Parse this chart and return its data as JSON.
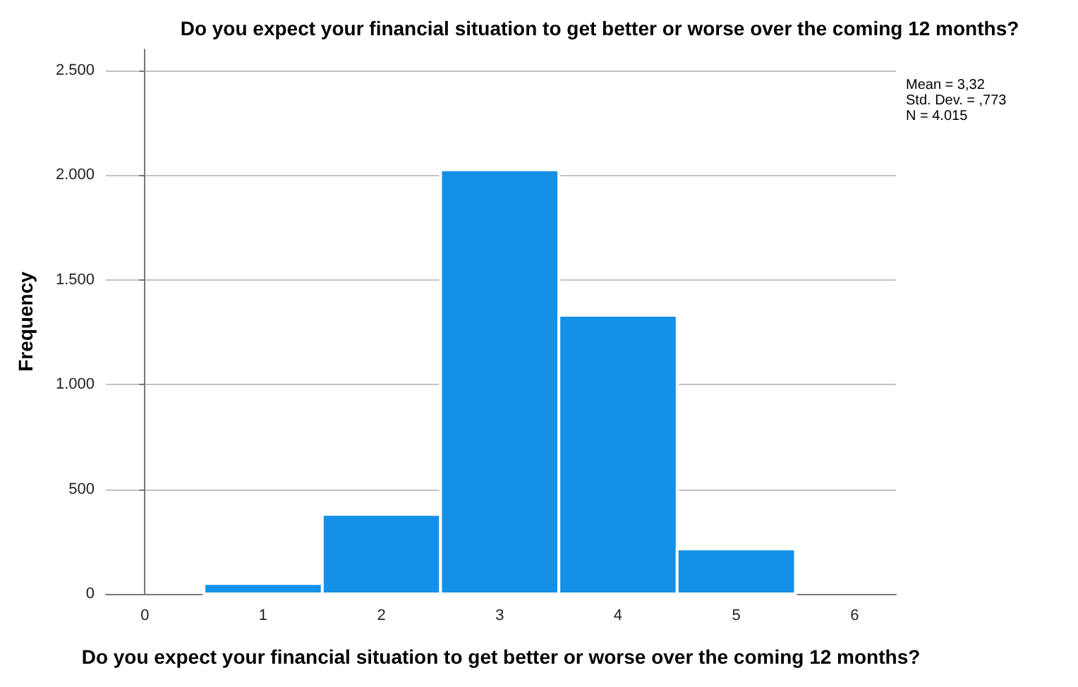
{
  "chart_data": {
    "type": "histogram",
    "title": "Do you expect your financial situation to get better or worse over the coming 12 months?",
    "xlabel": "Do you expect your financial situation to get better or worse over the coming 12 months?",
    "ylabel": "Frequency",
    "bins": [
      0.5,
      1.5,
      2.5,
      3.5,
      4.5,
      5.5
    ],
    "values": [
      50,
      380,
      2025,
      1330,
      215
    ],
    "color": "#1490e6",
    "xlim": [
      -0.33,
      6.35
    ],
    "xticks": [
      0,
      1,
      2,
      3,
      4,
      5,
      6
    ],
    "ylim": [
      0,
      2600
    ],
    "yticks": [
      0,
      500,
      {
        "value": 1000,
        "label": "1.000"
      },
      {
        "value": 1500,
        "label": "1.500"
      },
      {
        "value": 2000,
        "label": "2.000"
      },
      {
        "value": 2500,
        "label": "2.500"
      }
    ],
    "grid": "y",
    "annotations": [
      "Mean = 3,32",
      "Std. Dev. = ,773",
      "N = 4.015"
    ]
  }
}
